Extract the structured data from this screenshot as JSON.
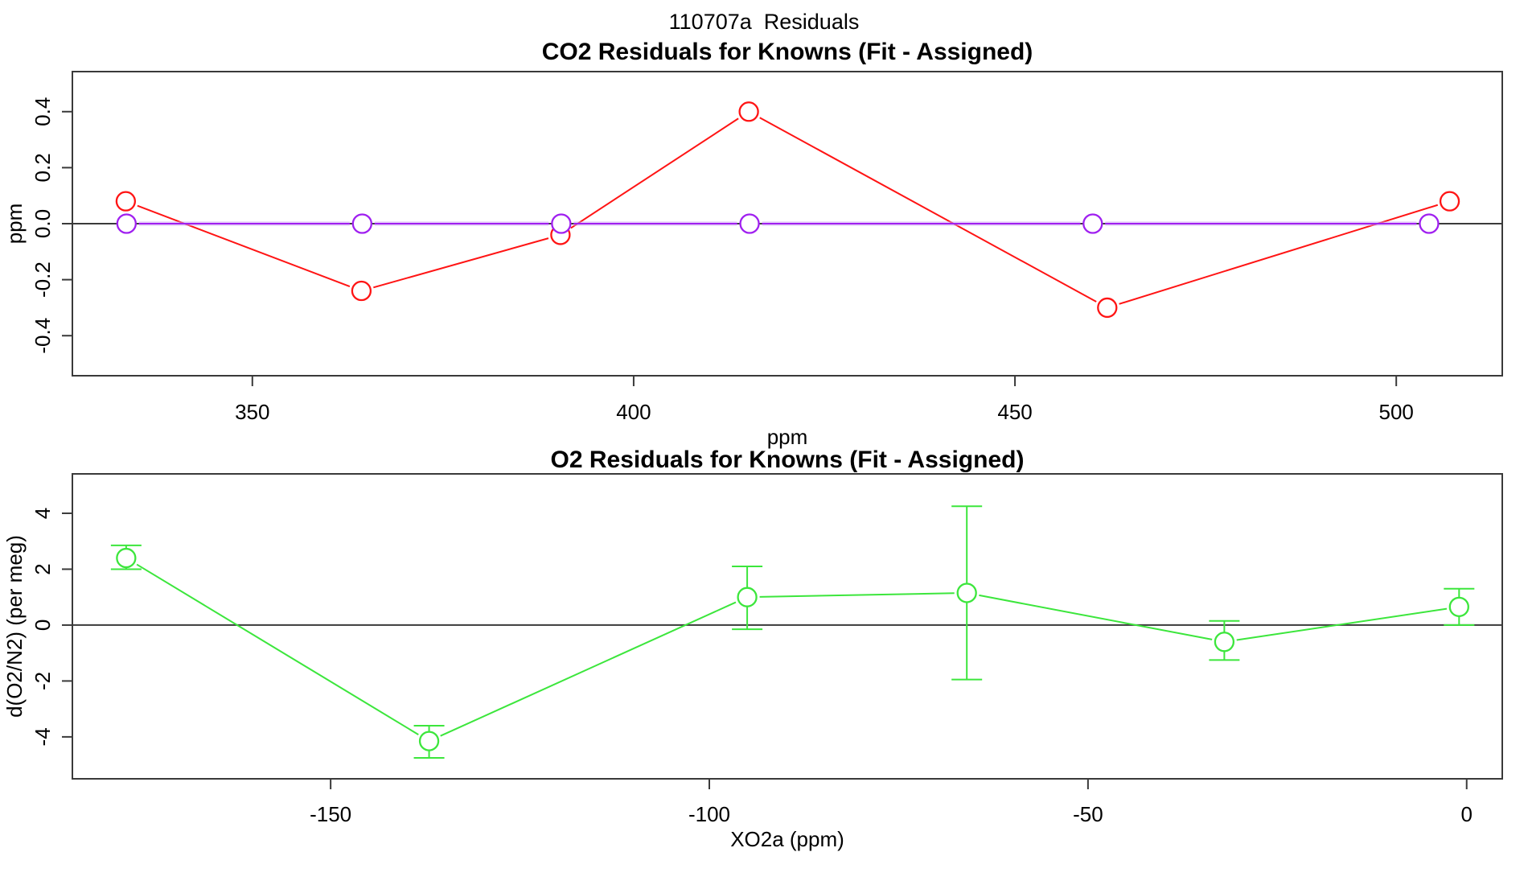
{
  "page_title": "110707a  Residuals",
  "chart_data": [
    {
      "type": "line",
      "title": "CO2 Residuals for Knowns (Fit - Assigned)",
      "xlabel": "ppm",
      "ylabel": "ppm",
      "xlim": [
        326.4,
        513.9
      ],
      "ylim": [
        -0.543,
        0.543
      ],
      "grid": false,
      "legend": "none",
      "zero_line": 0,
      "xticks": {
        "values": [
          350,
          400,
          450,
          500
        ],
        "labels": [
          "350",
          "400",
          "450",
          "500"
        ]
      },
      "yticks": {
        "values": [
          -0.4,
          -0.2,
          0,
          0.2,
          0.4
        ],
        "labels": [
          "-0.4",
          "-0.2",
          "0.0",
          "0.2",
          "0.4"
        ]
      },
      "series": [
        {
          "name": "co2-residual-red",
          "color": "#ff1414",
          "marker": "open-circle",
          "x": [
            333.4,
            364.3,
            390.4,
            415.1,
            462.1,
            507.0
          ],
          "y": [
            0.08,
            -0.24,
            -0.04,
            0.4,
            -0.3,
            0.08
          ]
        },
        {
          "name": "co2-residual-fit-purple",
          "color": "#a020f0",
          "halo": "#cfa3f2",
          "marker": "open-circle",
          "x": [
            333.5,
            364.4,
            390.5,
            415.2,
            460.2,
            504.3
          ],
          "y": [
            0.0,
            0.0,
            0.0,
            0.0,
            0.0,
            0.0
          ]
        }
      ]
    },
    {
      "type": "line",
      "title": "O2 Residuals for Knowns (Fit - Assigned)",
      "xlabel": "XO2a (ppm)",
      "ylabel": "d(O2/N2) (per meg)",
      "xlim": [
        -184.1,
        4.7
      ],
      "ylim": [
        -5.5,
        5.41
      ],
      "grid": false,
      "legend": "none",
      "zero_line": 0,
      "xticks": {
        "values": [
          -150,
          -100,
          -50,
          0
        ],
        "labels": [
          "-150",
          "-100",
          "-50",
          "0"
        ]
      },
      "yticks": {
        "values": [
          -4,
          -2,
          0,
          2,
          4
        ],
        "labels": [
          "-4",
          "-2",
          "0",
          "2",
          "4"
        ]
      },
      "series": [
        {
          "name": "o2-residual-green",
          "color": "#3ce63c",
          "marker": "open-circle",
          "x": [
            -177,
            -137,
            -95,
            -66,
            -32,
            -1
          ],
          "y": [
            2.4,
            -4.15,
            1.0,
            1.15,
            -0.6,
            0.65
          ],
          "err_lo": [
            2.0,
            -4.75,
            -0.15,
            -1.95,
            -1.25,
            0.0
          ],
          "err_hi": [
            2.85,
            -3.6,
            2.1,
            4.25,
            0.15,
            1.3
          ]
        }
      ]
    }
  ]
}
